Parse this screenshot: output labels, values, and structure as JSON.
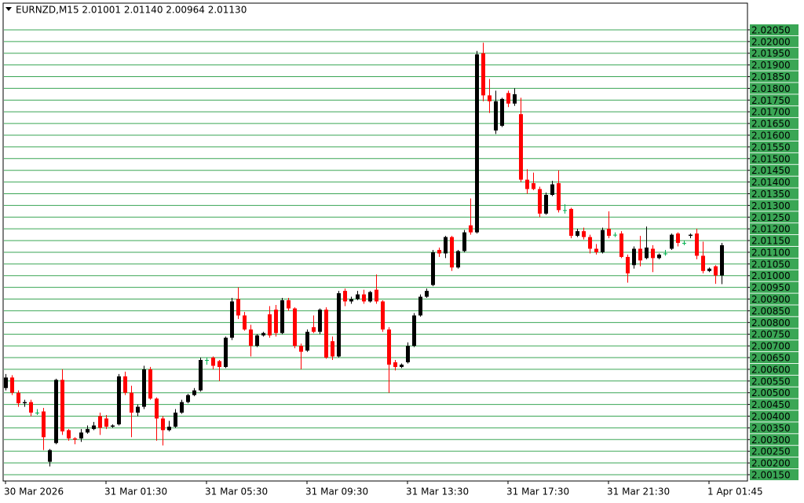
{
  "chart_data": {
    "type": "candlestick",
    "title": "EURNZD,M15  2.01001 2.01140 2.00964 2.01130",
    "up_color": "#000000",
    "down_color": "#ff0000",
    "doji_color": "#00b050",
    "grid_color": "#3aa655",
    "grid": true,
    "categories": [
      "30 Mar 2026",
      null,
      null,
      null,
      null,
      null,
      null,
      null,
      null,
      null,
      null,
      null,
      null,
      null,
      null,
      null,
      "31 Mar 01:30",
      null,
      null,
      null,
      null,
      null,
      null,
      null,
      null,
      null,
      null,
      null,
      null,
      null,
      null,
      null,
      "31 Mar 05:30",
      null,
      null,
      null,
      null,
      null,
      null,
      null,
      null,
      null,
      null,
      null,
      null,
      null,
      null,
      null,
      "31 Mar 09:30",
      null,
      null,
      null,
      null,
      null,
      null,
      null,
      null,
      null,
      null,
      null,
      null,
      null,
      null,
      null,
      "31 Mar 13:30",
      null,
      null,
      null,
      null,
      null,
      null,
      null,
      null,
      null,
      null,
      null,
      null,
      null,
      null,
      null,
      "31 Mar 17:30",
      null,
      null,
      null,
      null,
      null,
      null,
      null,
      null,
      null,
      null,
      null,
      null,
      null,
      null,
      null,
      "31 Mar 21:30",
      null,
      null,
      null,
      null,
      null,
      null,
      null,
      null,
      null,
      null,
      null,
      null,
      null,
      null,
      null,
      "1 Apr 01:45",
      null,
      null
    ],
    "open": [
      2.0052,
      2.00565,
      2.005,
      2.00455,
      2.0046,
      2.00415,
      2.0042,
      2.00205,
      2.00285,
      2.00555,
      2.0034,
      2.00305,
      2.00305,
      2.0033,
      2.00345,
      2.004,
      2.0039,
      2.00355,
      2.00365,
      2.0057,
      2.005,
      2.00415,
      2.0044,
      2.006,
      2.00475,
      2.0039,
      2.0034,
      2.00355,
      2.00415,
      2.0046,
      2.0049,
      2.0051,
      2.0064,
      2.0065,
      2.00635,
      2.0061,
      2.00735,
      2.009,
      2.0083,
      2.0077,
      2.007,
      2.00745,
      2.00835,
      2.00855,
      2.00755,
      2.00895,
      2.0086,
      2.007,
      2.0068,
      2.0078,
      2.0076,
      2.00855,
      2.0072,
      2.00655,
      2.00935,
      2.0089,
      2.009,
      2.0092,
      2.0089,
      2.0094,
      2.0089,
      2.0077,
      2.0063,
      2.0061,
      2.0063,
      2.007,
      2.0083,
      2.0091,
      2.0096,
      2.0111,
      2.01095,
      2.01165,
      2.01035,
      2.01105,
      2.01215,
      2.01185,
      2.0195,
      2.0177,
      2.0162,
      2.0164,
      2.0178,
      2.01735,
      2.0169,
      2.0141,
      2.01395,
      2.0137,
      2.01265,
      2.01345,
      2.01395,
      2.0128,
      2.01285,
      2.0117,
      2.0119,
      2.01165,
      2.01115,
      2.011,
      2.012,
      2.01175,
      2.0118,
      2.0108,
      2.01045,
      2.01115,
      2.01075,
      2.01115,
      2.01075,
      2.01095,
      2.01115,
      2.0118,
      2.0114,
      2.0117,
      2.0118,
      2.01085,
      2.0102,
      2.0104,
      2.01001
    ],
    "high": [
      2.0058,
      2.00575,
      2.0051,
      2.0047,
      2.0047,
      2.0043,
      2.00435,
      2.0026,
      2.0056,
      2.006,
      2.00345,
      2.0031,
      2.00345,
      2.0036,
      2.00375,
      2.00415,
      2.00405,
      2.00365,
      2.0058,
      2.0059,
      2.0053,
      2.0045,
      2.00615,
      2.0061,
      2.0048,
      2.004,
      2.0038,
      2.0043,
      2.0047,
      2.00495,
      2.0052,
      2.0065,
      2.0065,
      2.00655,
      2.0064,
      2.0074,
      2.00905,
      2.0095,
      2.00845,
      2.0079,
      2.0075,
      2.0076,
      2.0087,
      2.00875,
      2.00905,
      2.00905,
      2.00865,
      2.0071,
      2.0077,
      2.0083,
      2.0086,
      2.00865,
      2.0074,
      2.00935,
      2.00945,
      2.0091,
      2.00935,
      2.0094,
      2.00935,
      2.01005,
      2.00895,
      2.0078,
      2.0064,
      2.00625,
      2.00715,
      2.0084,
      2.0092,
      2.00945,
      2.0111,
      2.0112,
      2.0117,
      2.0117,
      2.0111,
      2.01195,
      2.0133,
      2.0196,
      2.01995,
      2.0184,
      2.0179,
      2.0176,
      2.0179,
      2.018,
      2.0176,
      2.01455,
      2.0144,
      2.0138,
      2.01355,
      2.01405,
      2.0145,
      2.01305,
      2.0129,
      2.012,
      2.01205,
      2.01175,
      2.01135,
      2.01205,
      2.01275,
      2.01185,
      2.0119,
      2.0109,
      2.01125,
      2.0117,
      2.0121,
      2.0113,
      2.01095,
      2.0111,
      2.0118,
      2.01185,
      2.0115,
      2.0118,
      2.012,
      2.01145,
      2.01035,
      2.01045,
      2.0114
    ],
    "low": [
      2.0051,
      2.0049,
      2.0044,
      2.0044,
      2.004,
      2.00405,
      2.00255,
      2.00185,
      2.0028,
      2.0032,
      2.00295,
      2.0028,
      2.0029,
      2.00325,
      2.0034,
      2.0032,
      2.00345,
      2.0035,
      2.0036,
      2.0049,
      2.0031,
      2.004,
      2.0043,
      2.0047,
      2.00295,
      2.00275,
      2.00335,
      2.0035,
      2.0041,
      2.00455,
      2.00485,
      2.00505,
      2.0062,
      2.006,
      2.0055,
      2.00605,
      2.00725,
      2.00815,
      2.00765,
      2.00655,
      2.00695,
      2.0074,
      2.00735,
      2.0074,
      2.0075,
      2.0085,
      2.0069,
      2.006,
      2.00675,
      2.00755,
      2.0075,
      2.00645,
      2.0064,
      2.0065,
      2.0087,
      2.0088,
      2.00895,
      2.0088,
      2.00885,
      2.0088,
      2.0076,
      2.005,
      2.00595,
      2.00605,
      2.00625,
      2.00695,
      2.00825,
      2.00905,
      2.00955,
      2.0108,
      2.01075,
      2.0102,
      2.0103,
      2.011,
      2.01175,
      2.0118,
      2.01745,
      2.01695,
      2.01605,
      2.01635,
      2.0172,
      2.01725,
      2.014,
      2.0135,
      2.01365,
      2.0125,
      2.0126,
      2.0134,
      2.0127,
      2.01265,
      2.0116,
      2.01165,
      2.01155,
      2.01095,
      2.0109,
      2.01095,
      2.0116,
      2.01165,
      2.01075,
      2.0097,
      2.0103,
      2.0104,
      2.0107,
      2.01015,
      2.0107,
      2.01085,
      2.0111,
      2.01125,
      2.0113,
      2.0116,
      2.0107,
      2.0101,
      2.01015,
      2.00965,
      2.00964
    ],
    "close": [
      2.00565,
      2.005,
      2.00455,
      2.0046,
      2.00415,
      2.00415,
      2.0031,
      2.00255,
      2.00555,
      2.00335,
      2.00305,
      2.003,
      2.0033,
      2.00345,
      2.0036,
      2.0035,
      2.00355,
      2.0036,
      2.0057,
      2.005,
      2.00415,
      2.0044,
      2.006,
      2.00475,
      2.0039,
      2.0034,
      2.00355,
      2.00415,
      2.0046,
      2.0049,
      2.0051,
      2.0064,
      2.0064,
      2.00615,
      2.0061,
      2.00735,
      2.0089,
      2.0083,
      2.0077,
      2.007,
      2.00745,
      2.00755,
      2.00745,
      2.00755,
      2.00895,
      2.0086,
      2.007,
      2.00675,
      2.0076,
      2.0076,
      2.00855,
      2.0065,
      2.00655,
      2.00925,
      2.0089,
      2.009,
      2.0092,
      2.0089,
      2.0093,
      2.0089,
      2.0077,
      2.0062,
      2.0061,
      2.0062,
      2.007,
      2.0083,
      2.0091,
      2.00935,
      2.011,
      2.01095,
      2.01165,
      2.01035,
      2.01105,
      2.01185,
      2.01185,
      2.01945,
      2.0177,
      2.01745,
      2.01745,
      2.01755,
      2.01735,
      2.01775,
      2.0141,
      2.0137,
      2.0137,
      2.01265,
      2.01345,
      2.0139,
      2.0128,
      2.0128,
      2.0117,
      2.0119,
      2.01165,
      2.01115,
      2.011,
      2.01195,
      2.0117,
      2.01175,
      2.0108,
      2.0101,
      2.01115,
      2.01065,
      2.0112,
      2.01075,
      2.0109,
      2.01095,
      2.01175,
      2.0114,
      2.0114,
      2.01175,
      2.01085,
      2.0102,
      2.0103,
      2.01001,
      2.0113
    ],
    "ylim": [
      2.00123,
      2.02164
    ],
    "yticks": [
      {
        "value": 2.0015,
        "label": "2.00150"
      },
      {
        "value": 2.002,
        "label": "2.00200"
      },
      {
        "value": 2.0025,
        "label": "2.00250"
      },
      {
        "value": 2.003,
        "label": "2.00300"
      },
      {
        "value": 2.0035,
        "label": "2.00350"
      },
      {
        "value": 2.004,
        "label": "2.00400"
      },
      {
        "value": 2.0045,
        "label": "2.00450"
      },
      {
        "value": 2.005,
        "label": "2.00500"
      },
      {
        "value": 2.0055,
        "label": "2.00550"
      },
      {
        "value": 2.006,
        "label": "2.00600"
      },
      {
        "value": 2.0065,
        "label": "2.00650"
      },
      {
        "value": 2.007,
        "label": "2.00700"
      },
      {
        "value": 2.0075,
        "label": "2.00750"
      },
      {
        "value": 2.008,
        "label": "2.00800"
      },
      {
        "value": 2.0085,
        "label": "2.00850"
      },
      {
        "value": 2.009,
        "label": "2.00900"
      },
      {
        "value": 2.0095,
        "label": "2.00950"
      },
      {
        "value": 2.01,
        "label": "2.01000"
      },
      {
        "value": 2.0105,
        "label": "2.01050"
      },
      {
        "value": 2.011,
        "label": "2.01100"
      },
      {
        "value": 2.0115,
        "label": "2.01150"
      },
      {
        "value": 2.012,
        "label": "2.01200"
      },
      {
        "value": 2.0125,
        "label": "2.01250"
      },
      {
        "value": 2.013,
        "label": "2.01300"
      },
      {
        "value": 2.0135,
        "label": "2.01350"
      },
      {
        "value": 2.014,
        "label": "2.01400"
      },
      {
        "value": 2.0145,
        "label": "2.01450"
      },
      {
        "value": 2.015,
        "label": "2.01500"
      },
      {
        "value": 2.0155,
        "label": "2.01550"
      },
      {
        "value": 2.016,
        "label": "2.01600"
      },
      {
        "value": 2.0165,
        "label": "2.01650"
      },
      {
        "value": 2.017,
        "label": "2.01700"
      },
      {
        "value": 2.0175,
        "label": "2.01750"
      },
      {
        "value": 2.018,
        "label": "2.01800"
      },
      {
        "value": 2.0185,
        "label": "2.01850"
      },
      {
        "value": 2.019,
        "label": "2.01900"
      },
      {
        "value": 2.0195,
        "label": "2.01950"
      },
      {
        "value": 2.02,
        "label": "2.02000"
      },
      {
        "value": 2.0205,
        "label": "2.02050"
      }
    ]
  }
}
